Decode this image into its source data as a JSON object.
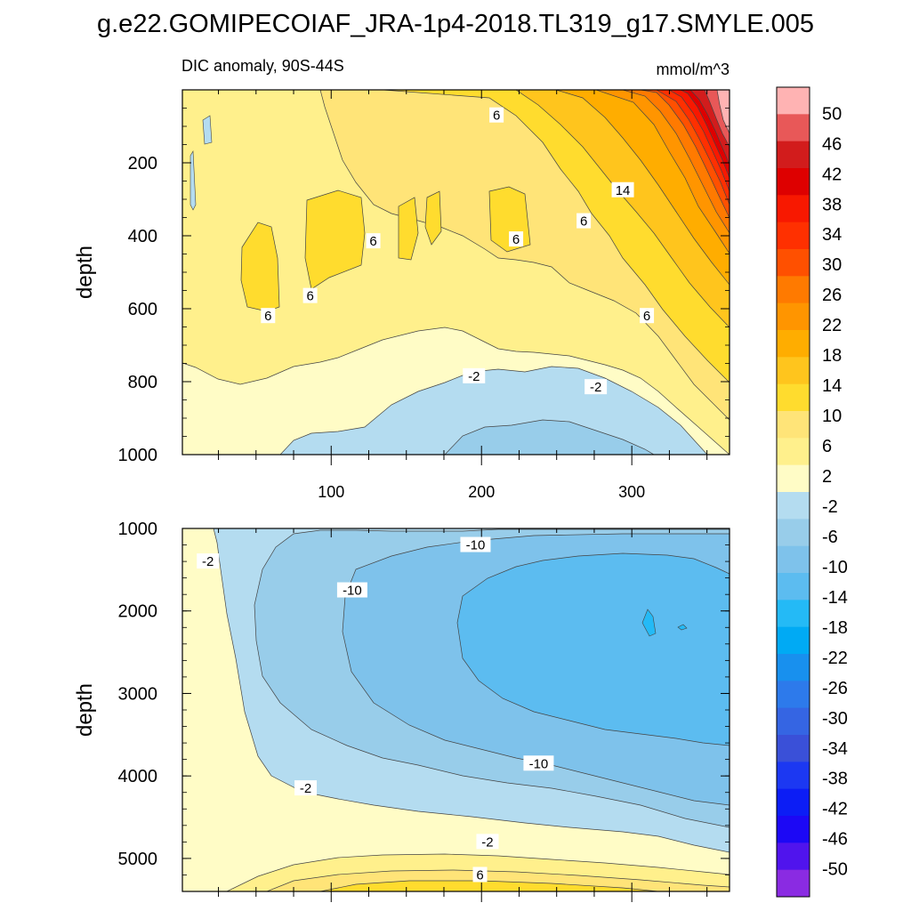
{
  "title": "g.e22.GOMIPECOIAF_JRA-1p4-2018.TL319_g17.SMYLE.005",
  "chart_data": {
    "type": "heatmap",
    "variable": "DIC anomaly",
    "subtitle_left": "DIC anomaly, 90S-44S",
    "units": "mmol/m^3",
    "x": {
      "range": [
        1,
        365
      ],
      "ticks": [
        100,
        200,
        300
      ]
    },
    "panels": [
      {
        "id": "upper",
        "ylabel": "depth",
        "ylim": [
          0,
          1000
        ],
        "yaxis_inverted": true,
        "ytick_labels": [
          "200",
          "400",
          "600",
          "800",
          "1000"
        ],
        "contour_labels": [
          {
            "text": "6",
            "x": 210,
            "depth": 70
          },
          {
            "text": "14",
            "x": 294,
            "depth": 275
          },
          {
            "text": "6",
            "x": 128,
            "depth": 415
          },
          {
            "text": "6",
            "x": 223,
            "depth": 410
          },
          {
            "text": "6",
            "x": 268,
            "depth": 360
          },
          {
            "text": "6",
            "x": 86,
            "depth": 565
          },
          {
            "text": "6",
            "x": 58,
            "depth": 620
          },
          {
            "text": "6",
            "x": 310,
            "depth": 620
          },
          {
            "text": "-2",
            "x": 195,
            "depth": 785
          },
          {
            "text": "-2",
            "x": 276,
            "depth": 815
          }
        ]
      },
      {
        "id": "lower",
        "ylabel": "depth",
        "ylim": [
          1000,
          5400
        ],
        "yaxis_inverted": true,
        "ytick_labels": [
          "1000",
          "2000",
          "3000",
          "4000",
          "5000"
        ],
        "contour_labels": [
          {
            "text": "-2",
            "x": 18,
            "depth": 1400
          },
          {
            "text": "-10",
            "x": 196,
            "depth": 1200
          },
          {
            "text": "-10",
            "x": 114,
            "depth": 1750
          },
          {
            "text": "-10",
            "x": 238,
            "depth": 3850
          },
          {
            "text": "-2",
            "x": 83,
            "depth": 4150
          },
          {
            "text": "-2",
            "x": 204,
            "depth": 4800
          },
          {
            "text": "6",
            "x": 199,
            "depth": 5200
          }
        ]
      }
    ],
    "colorbar": {
      "labels": [
        "50",
        "46",
        "42",
        "38",
        "34",
        "30",
        "26",
        "22",
        "18",
        "14",
        "10",
        "6",
        "2",
        "-2",
        "-6",
        "-10",
        "-14",
        "-18",
        "-22",
        "-26",
        "-30",
        "-34",
        "-38",
        "-42",
        "-46",
        "-50"
      ],
      "colors": [
        "#ffb3b3",
        "#e85858",
        "#d21c1c",
        "#de0000",
        "#f81800",
        "#ff3000",
        "#ff5000",
        "#ff7a00",
        "#ff9500",
        "#ffad00",
        "#ffc51d",
        "#ffdc2e",
        "#ffe478",
        "#fff08c",
        "#fffcc6",
        "#b4dcf0",
        "#98cdea",
        "#7ec2eb",
        "#5cbcf0",
        "#24baf6",
        "#00aaf4",
        "#1890ee",
        "#2d7aeb",
        "#3565e3",
        "#3a50d8",
        "#1c38f2",
        "#0c1df5",
        "#1c08f5",
        "#5014ed",
        "#8a2be2"
      ]
    }
  }
}
